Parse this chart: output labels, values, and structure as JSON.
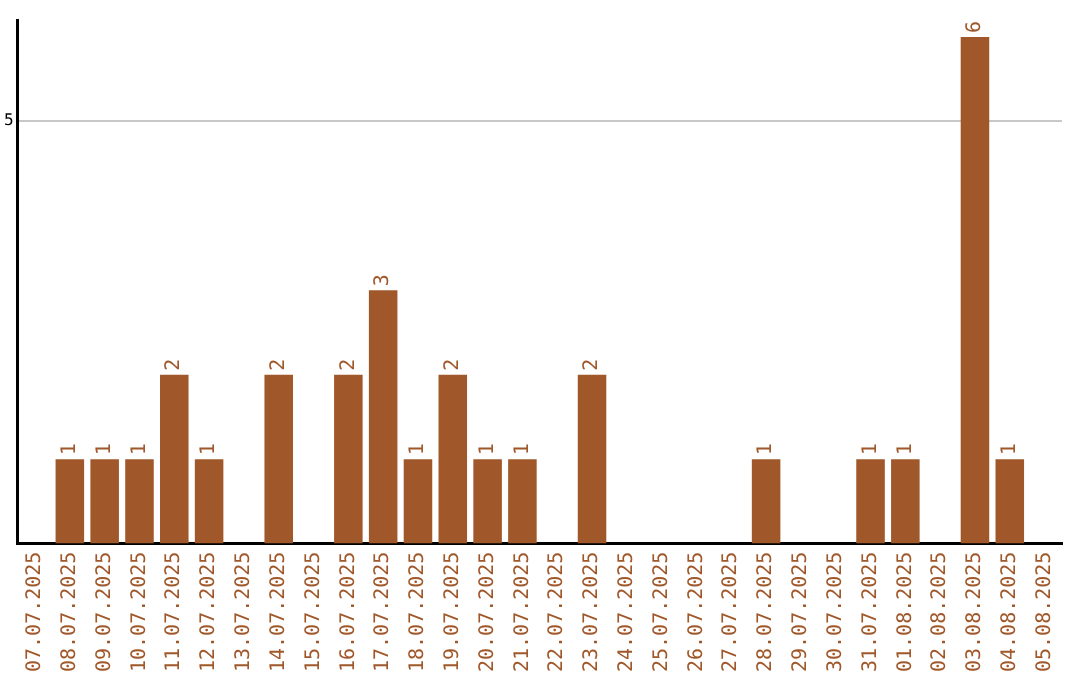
{
  "chart_data": {
    "type": "bar",
    "categories": [
      "07.07.2025",
      "08.07.2025",
      "09.07.2025",
      "10.07.2025",
      "11.07.2025",
      "12.07.2025",
      "13.07.2025",
      "14.07.2025",
      "15.07.2025",
      "16.07.2025",
      "17.07.2025",
      "18.07.2025",
      "19.07.2025",
      "20.07.2025",
      "21.07.2025",
      "22.07.2025",
      "23.07.2025",
      "24.07.2025",
      "25.07.2025",
      "26.07.2025",
      "27.07.2025",
      "28.07.2025",
      "29.07.2025",
      "30.07.2025",
      "31.07.2025",
      "01.08.2025",
      "02.08.2025",
      "03.08.2025",
      "04.08.2025",
      "05.08.2025"
    ],
    "values": [
      0,
      1,
      1,
      1,
      2,
      1,
      0,
      2,
      0,
      2,
      3,
      1,
      2,
      1,
      1,
      0,
      2,
      0,
      0,
      0,
      0,
      1,
      0,
      0,
      1,
      1,
      0,
      6,
      1,
      0
    ],
    "value_labels": [
      null,
      "1",
      "1",
      "1",
      "2",
      "1",
      null,
      "2",
      null,
      "2",
      "3",
      "1",
      "2",
      "1",
      "1",
      null,
      "2",
      null,
      null,
      null,
      null,
      "1",
      null,
      null,
      "1",
      "1",
      null,
      "6",
      "1",
      null
    ],
    "color": "#a0582a",
    "ylim": [
      0,
      6.2
    ],
    "yticks": [
      5
    ],
    "grid": "y",
    "legend": false
  }
}
